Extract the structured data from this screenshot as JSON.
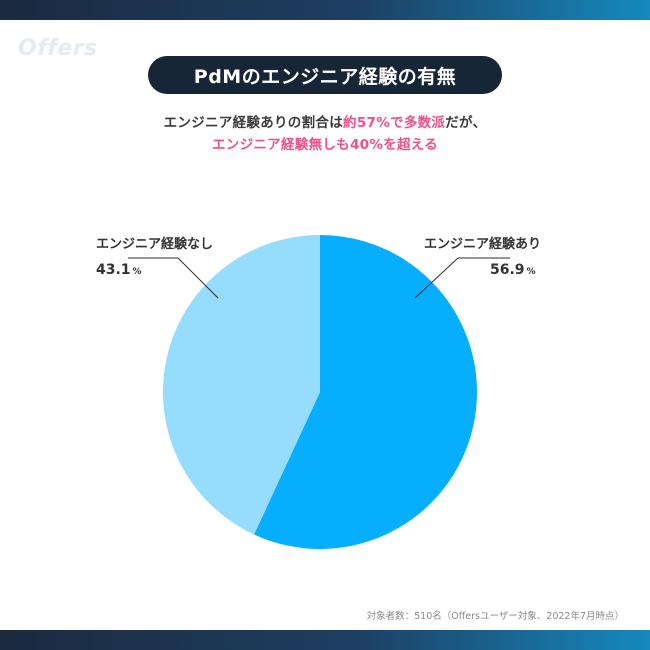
{
  "logo": "Offers",
  "title": "PdMのエンジニア経験の有無",
  "subtitle": {
    "line1_prefix": "エンジニア経験ありの割合は",
    "line1_highlight": "約57%で多数派",
    "line1_suffix": "だが、",
    "line2": "エンジニア経験無しも40%を超える"
  },
  "colors": {
    "with_experience": "#06aefb",
    "without_experience": "#95dcfd",
    "highlight": "#f0508a",
    "title_bg": "#172636"
  },
  "chart_data": {
    "type": "pie",
    "title": "PdMのエンジニア経験の有無",
    "slices": [
      {
        "label": "エンジニア経験あり",
        "value": 56.9,
        "value_label": "56.9",
        "unit": "%"
      },
      {
        "label": "エンジニア経験なし",
        "value": 43.1,
        "value_label": "43.1",
        "unit": "%"
      }
    ],
    "start": "12 o'clock",
    "direction": "clockwise"
  },
  "footnote": "対象者数：510名（Offersユーザー対象、2022年7月時点）"
}
